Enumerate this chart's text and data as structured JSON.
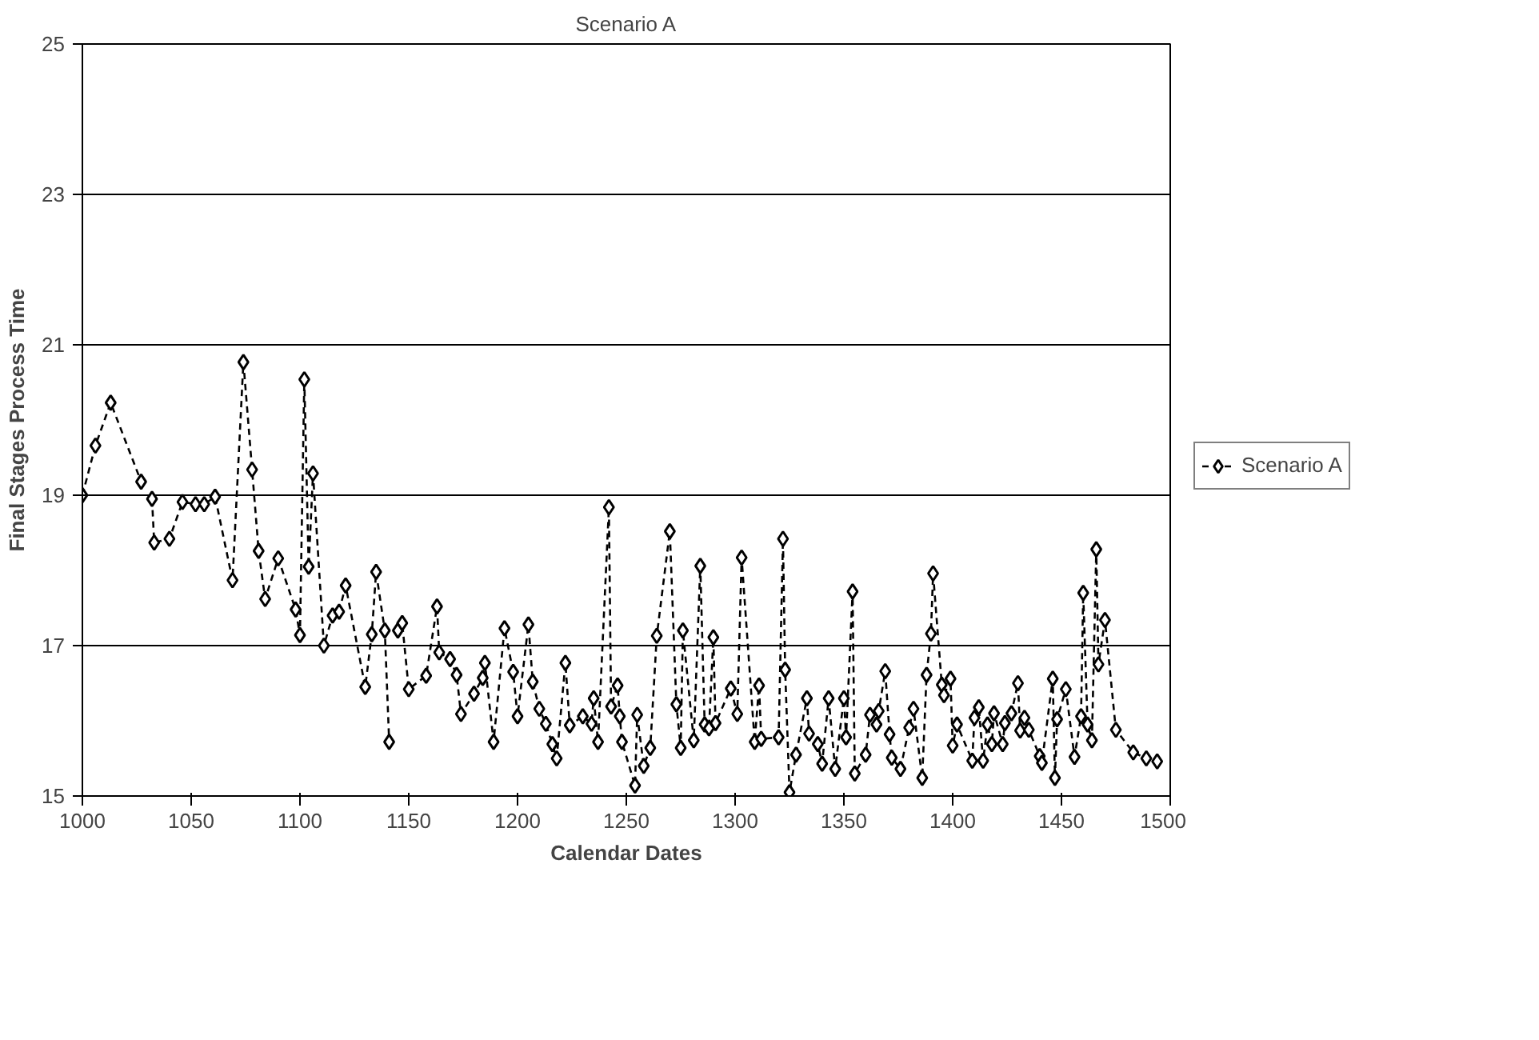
{
  "chart_data": {
    "type": "line",
    "title": "Scenario A",
    "xlabel": "Calendar Dates",
    "ylabel": "Final Stages Process Time",
    "xlim": [
      1000,
      1500
    ],
    "xticks": [
      1000,
      1050,
      1100,
      1150,
      1200,
      1250,
      1300,
      1350,
      1400,
      1450,
      1500
    ],
    "ylim": [
      15,
      25
    ],
    "yticks": [
      15,
      17,
      19,
      21,
      23,
      25
    ],
    "grid": "y",
    "legend": "right",
    "marker": "diamond",
    "line_style": "dashed",
    "x": [
      1000,
      1006,
      1013,
      1027,
      1030,
      1032,
      1033,
      1040,
      1046,
      1052,
      1056,
      1061,
      1069,
      1074,
      1078,
      1081,
      1084,
      1090,
      1098,
      1100,
      1102,
      1104,
      1106,
      1111,
      1115,
      1118,
      1121,
      1130,
      1133,
      1135,
      1139,
      1141,
      1143,
      1145,
      1147,
      1150,
      1158,
      1163,
      1164,
      1169,
      1172,
      1174,
      1180,
      1184,
      1185,
      1189,
      1194,
      1198,
      1200,
      1205,
      1207,
      1210,
      1213,
      1216,
      1218,
      1222,
      1224,
      1230,
      1234,
      1235,
      1237,
      1242,
      1243,
      1246,
      1247,
      1248,
      1254,
      1255,
      1258,
      1261,
      1264,
      1270,
      1273,
      1275,
      1276,
      1281,
      1284,
      1286,
      1288,
      1290,
      1291,
      1298,
      1301,
      1303,
      1309,
      1311,
      1312,
      1320,
      1322,
      1323,
      1325,
      1328,
      1333,
      1334,
      1338,
      1340,
      1343,
      1346,
      1350,
      1351,
      1354,
      1355,
      1360,
      1362,
      1365,
      1366,
      1369,
      1371,
      1372,
      1376,
      1380,
      1382,
      1386,
      1388,
      1390,
      1391,
      1395,
      1396,
      1399,
      1400,
      1402,
      1409,
      1410,
      1412,
      1414,
      1416,
      1418,
      1419,
      1423,
      1424,
      1427,
      1430,
      1431,
      1433,
      1435,
      1440,
      1441,
      1446,
      1447,
      1448,
      1452,
      1456,
      1459,
      1460,
      1462,
      1464,
      1466,
      1467,
      1470,
      1475,
      1483,
      1489,
      1494
    ],
    "series": [
      {
        "name": "Scenario A",
        "color": "#000000",
        "values": [
          19.0,
          19.66,
          20.23,
          19.18,
          null,
          18.95,
          18.37,
          18.42,
          18.91,
          18.88,
          18.88,
          18.98,
          17.87,
          20.77,
          19.34,
          18.26,
          17.62,
          18.16,
          17.48,
          17.14,
          20.54,
          18.05,
          19.29,
          17.0,
          17.4,
          17.45,
          17.8,
          16.45,
          17.15,
          17.98,
          17.2,
          15.72,
          null,
          17.2,
          17.3,
          16.42,
          16.6,
          17.52,
          16.91,
          16.82,
          16.61,
          16.09,
          16.36,
          16.57,
          16.77,
          15.72,
          17.23,
          16.65,
          16.06,
          17.28,
          16.52,
          16.16,
          15.96,
          15.69,
          15.5,
          16.77,
          15.94,
          16.06,
          15.96,
          16.3,
          15.72,
          18.84,
          16.19,
          16.47,
          16.06,
          15.72,
          15.14,
          16.08,
          15.4,
          15.64,
          17.13,
          18.52,
          16.22,
          15.64,
          17.2,
          15.74,
          18.06,
          15.95,
          15.9,
          17.11,
          15.97,
          16.43,
          16.09,
          18.17,
          15.72,
          16.47,
          15.76,
          15.78,
          18.42,
          16.68,
          15.05,
          15.55,
          16.3,
          15.83,
          15.69,
          15.43,
          16.3,
          15.36,
          16.3,
          15.78,
          17.72,
          15.3,
          15.55,
          16.08,
          15.95,
          16.13,
          16.66,
          15.82,
          15.51,
          15.36,
          15.91,
          16.16,
          15.24,
          16.61,
          17.16,
          17.96,
          16.48,
          16.34,
          16.56,
          15.67,
          15.95,
          15.47,
          16.04,
          16.18,
          15.47,
          15.95,
          15.69,
          16.1,
          15.69,
          15.97,
          16.1,
          16.5,
          15.87,
          16.04,
          15.88,
          15.53,
          15.44,
          16.56,
          15.24,
          16.02,
          16.42,
          15.52,
          16.06,
          17.7,
          15.95,
          15.74,
          18.28,
          16.75,
          17.34,
          15.88,
          15.58,
          15.5,
          15.46
        ]
      }
    ]
  }
}
